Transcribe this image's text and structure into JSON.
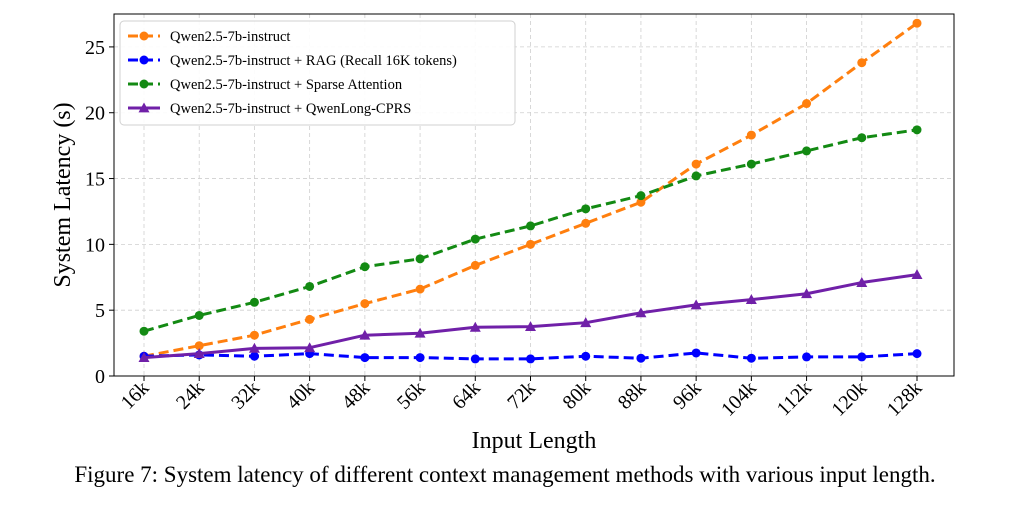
{
  "chart_data": {
    "type": "line",
    "xlabel": "Input Length",
    "ylabel": "System Latency (s)",
    "categories": [
      "16k",
      "24k",
      "32k",
      "40k",
      "48k",
      "56k",
      "64k",
      "72k",
      "80k",
      "88k",
      "96k",
      "104k",
      "112k",
      "120k",
      "128k"
    ],
    "ylim": [
      0,
      27.5
    ],
    "yticks": [
      0,
      5,
      10,
      15,
      20,
      25
    ],
    "grid": true,
    "legend_position": "top-left",
    "series": [
      {
        "name": "Qwen2.5-7b-instruct",
        "color": "#ff7f0e",
        "line_style": "dashed",
        "marker": "circle",
        "values": [
          1.5,
          2.3,
          3.1,
          4.3,
          5.5,
          6.6,
          8.4,
          10.0,
          11.6,
          13.2,
          16.1,
          18.3,
          20.7,
          23.8,
          26.8
        ]
      },
      {
        "name": "Qwen2.5-7b-instruct + RAG (Recall 16K tokens)",
        "color": "#0000ff",
        "line_style": "dashed",
        "marker": "circle",
        "values": [
          1.5,
          1.6,
          1.5,
          1.7,
          1.4,
          1.4,
          1.3,
          1.3,
          1.5,
          1.35,
          1.75,
          1.35,
          1.45,
          1.45,
          1.7
        ]
      },
      {
        "name": "Qwen2.5-7b-instruct + Sparse Attention",
        "color": "#138a13",
        "line_style": "dashed",
        "marker": "circle",
        "values": [
          3.4,
          4.6,
          5.6,
          6.8,
          8.3,
          8.9,
          10.4,
          11.4,
          12.7,
          13.7,
          15.2,
          16.1,
          17.1,
          18.1,
          18.7
        ]
      },
      {
        "name": "Qwen2.5-7b-instruct + QwenLong-CPRS",
        "color": "#7020a8",
        "line_style": "solid",
        "marker": "triangle",
        "values": [
          1.4,
          1.7,
          2.1,
          2.15,
          3.1,
          3.25,
          3.7,
          3.75,
          4.05,
          4.8,
          5.4,
          5.8,
          6.25,
          7.1,
          7.7
        ]
      }
    ]
  },
  "caption": "Figure 7: System latency of different context management methods with various input length."
}
